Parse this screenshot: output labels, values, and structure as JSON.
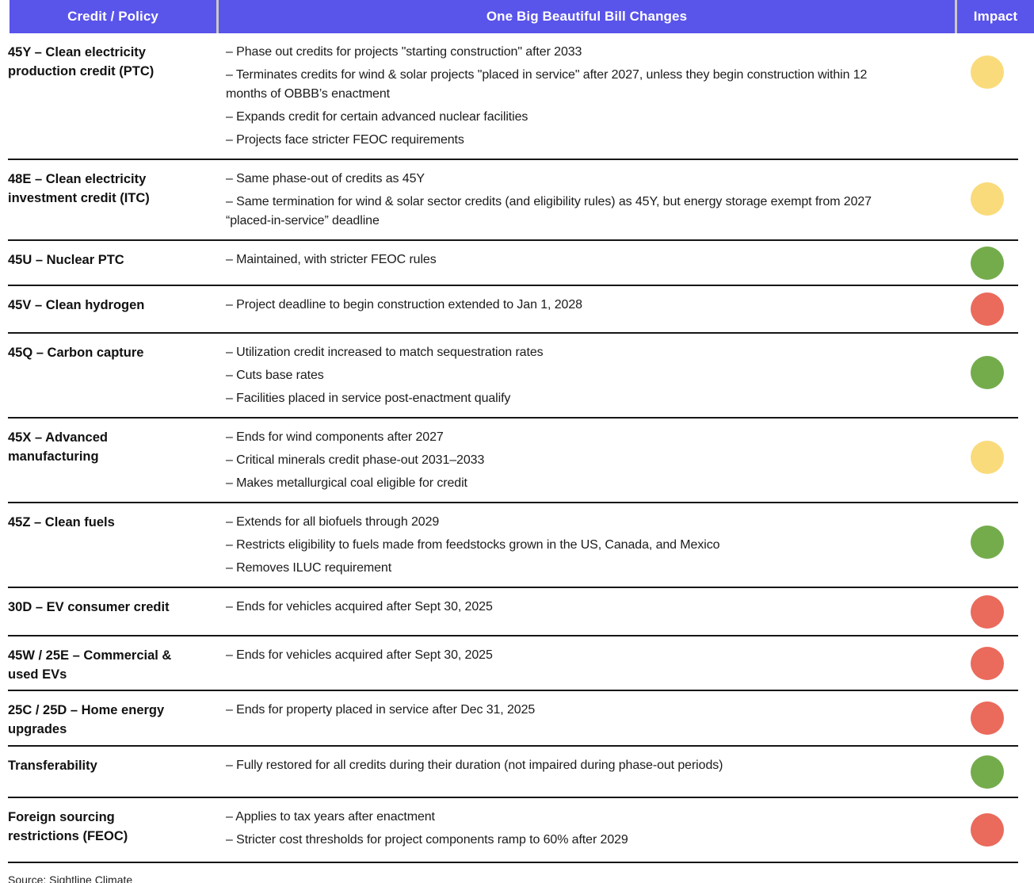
{
  "header": {
    "credit_policy": "Credit / Policy",
    "changes": "One Big Beautiful Bill Changes",
    "impact": "Impact"
  },
  "colors": {
    "header_bg": "#5954EA",
    "header_text": "#FFFFFF",
    "divider": "#C9C9C3",
    "row_line": "#161616",
    "yellow": "#FADB7B",
    "green": "#74AC4C",
    "red": "#EA6A5C"
  },
  "rows": [
    {
      "policy": "45Y – Clean electricity production credit (PTC)",
      "changes": [
        "– Phase out credits for projects \"starting construction\" after 2033",
        "– Terminates credits for wind & solar projects \"placed in service\" after 2027, unless they begin construction within 12 months of OBBB’s enactment",
        "– Expands credit for certain advanced nuclear facilities",
        "– Projects face stricter FEOC requirements"
      ],
      "impact": "yellow"
    },
    {
      "policy": "48E – Clean electricity investment credit (ITC)",
      "changes": [
        "– Same phase-out of credits as 45Y",
        "– Same termination for wind & solar sector credits (and eligibility rules) as 45Y, but energy storage exempt from 2027 “placed-in-service” deadline"
      ],
      "impact": "yellow"
    },
    {
      "policy": "45U – Nuclear PTC",
      "changes": [
        "– Maintained, with stricter FEOC rules"
      ],
      "impact": "green"
    },
    {
      "policy": "45V – Clean hydrogen",
      "changes": [
        "– Project deadline to begin construction extended to Jan 1, 2028"
      ],
      "impact": "red"
    },
    {
      "policy": "45Q – Carbon capture",
      "changes": [
        "– Utilization credit increased to match sequestration rates",
        "– Cuts base rates",
        "– Facilities placed in service post-enactment qualify"
      ],
      "impact": "green"
    },
    {
      "policy": "45X – Advanced manufacturing",
      "changes": [
        "– Ends for wind components after 2027",
        "– Critical minerals credit phase-out 2031–2033",
        "– Makes metallurgical coal eligible for credit"
      ],
      "impact": "yellow"
    },
    {
      "policy": "45Z – Clean fuels",
      "changes": [
        "– Extends for all biofuels through 2029",
        "– Restricts eligibility to fuels made from feedstocks grown in the US, Canada, and Mexico",
        "– Removes ILUC requirement"
      ],
      "impact": "green"
    },
    {
      "policy": "30D – EV consumer credit",
      "changes": [
        "– Ends for vehicles acquired after Sept 30, 2025"
      ],
      "impact": "red"
    },
    {
      "policy": "45W / 25E – Commercial & used EVs",
      "changes": [
        "– Ends for vehicles acquired after Sept 30, 2025"
      ],
      "impact": "red"
    },
    {
      "policy": "25C / 25D – Home energy upgrades",
      "changes": [
        "– Ends for property placed in service after Dec 31, 2025"
      ],
      "impact": "red"
    },
    {
      "policy": "Transferability",
      "changes": [
        "– Fully restored for all credits during their duration (not impaired during phase-out periods)"
      ],
      "impact": "green"
    },
    {
      "policy": "Foreign sourcing restrictions (FEOC)",
      "changes": [
        "– Applies to tax years after enactment",
        "– Stricter cost thresholds for project components ramp to 60% after 2029"
      ],
      "impact": "red"
    }
  ],
  "source": "Source: Sightline Climate"
}
